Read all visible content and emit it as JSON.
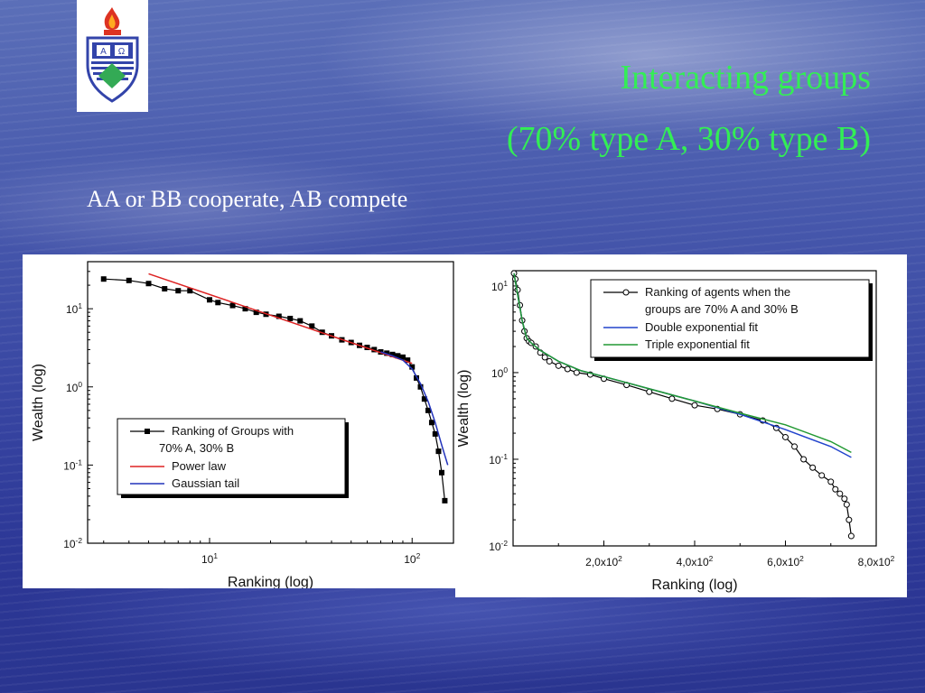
{
  "slide": {
    "title_line1": "Interacting groups",
    "title_line2": "(70% type A, 30% type B)",
    "subtitle": "AA or BB cooperate, AB compete",
    "title_color": "#33ee55"
  },
  "chart_data": [
    {
      "type": "scatter",
      "xlabel": "Ranking (log)",
      "ylabel": "Wealth (log)",
      "xscale": "log",
      "yscale": "log",
      "xlim": [
        2.5,
        160
      ],
      "ylim": [
        0.01,
        40
      ],
      "x_ticks": [
        {
          "base": "10",
          "exp": "1"
        },
        {
          "base": "10",
          "exp": "2"
        }
      ],
      "y_ticks": [
        {
          "base": "10",
          "exp": "-2"
        },
        {
          "base": "10",
          "exp": "-1"
        },
        {
          "base": "10",
          "exp": "0"
        },
        {
          "base": "10",
          "exp": "1"
        }
      ],
      "legend_position": "lower-center",
      "legend": [
        "Ranking of Groups with",
        "70% A, 30% B",
        "Power law",
        "Gaussian tail"
      ],
      "series": [
        {
          "name": "Ranking of Groups with 70% A, 30% B",
          "style": "black-square-line",
          "color": "#000000",
          "x": [
            3,
            4,
            5,
            6,
            7,
            8,
            10,
            11,
            13,
            15,
            17,
            19,
            22,
            25,
            28,
            32,
            36,
            40,
            45,
            50,
            55,
            60,
            65,
            70,
            75,
            80,
            85,
            90,
            95,
            100,
            105,
            110,
            115,
            120,
            125,
            130,
            135,
            140,
            145
          ],
          "y": [
            24,
            23,
            21,
            18,
            17,
            17,
            13,
            12,
            11,
            10,
            9,
            8.5,
            8,
            7.5,
            7,
            6,
            5,
            4.5,
            4,
            3.7,
            3.4,
            3.2,
            3,
            2.8,
            2.7,
            2.6,
            2.5,
            2.4,
            2.2,
            1.8,
            1.3,
            1,
            0.7,
            0.5,
            0.35,
            0.25,
            0.15,
            0.08,
            0.035
          ]
        },
        {
          "name": "Power law",
          "style": "line",
          "color": "#dd2222",
          "x": [
            5,
            100
          ],
          "y": [
            28,
            2.0
          ]
        },
        {
          "name": "Gaussian tail",
          "style": "line",
          "color": "#2233bb",
          "x": [
            70,
            80,
            90,
            100,
            110,
            120,
            130,
            140,
            150
          ],
          "y": [
            2.8,
            2.5,
            2.2,
            1.7,
            1.1,
            0.65,
            0.35,
            0.18,
            0.1
          ]
        }
      ]
    },
    {
      "type": "scatter",
      "xlabel": "Ranking (log)",
      "ylabel": "Wealth (log)",
      "xscale": "linear",
      "yscale": "log",
      "xlim": [
        0,
        800
      ],
      "ylim": [
        0.01,
        15
      ],
      "x_ticks": [
        {
          "v": 200,
          "base": "2,0x10",
          "exp": "2"
        },
        {
          "v": 400,
          "base": "4,0x10",
          "exp": "2"
        },
        {
          "v": 600,
          "base": "6,0x10",
          "exp": "2"
        },
        {
          "v": 800,
          "base": "8,0x10",
          "exp": "2"
        }
      ],
      "y_ticks": [
        {
          "base": "10",
          "exp": "-2"
        },
        {
          "base": "10",
          "exp": "-1"
        },
        {
          "base": "10",
          "exp": "0"
        },
        {
          "base": "10",
          "exp": "1"
        }
      ],
      "legend_position": "top-center",
      "legend": [
        "Ranking of agents when the",
        "groups are 70% A and 30% B",
        "Double exponential fit",
        "Triple exponential fit"
      ],
      "series": [
        {
          "name": "Ranking of agents when the groups are 70% A and 30% B",
          "style": "black-circle-line",
          "color": "#000000",
          "x": [
            2,
            5,
            10,
            15,
            20,
            25,
            30,
            35,
            40,
            50,
            60,
            70,
            80,
            100,
            120,
            140,
            170,
            200,
            250,
            300,
            350,
            400,
            450,
            500,
            550,
            580,
            600,
            620,
            640,
            660,
            680,
            700,
            710,
            720,
            730,
            735,
            740,
            745
          ],
          "y": [
            14,
            12,
            9,
            6,
            4,
            3,
            2.5,
            2.3,
            2.2,
            2.0,
            1.7,
            1.5,
            1.35,
            1.2,
            1.1,
            1.0,
            0.95,
            0.85,
            0.72,
            0.6,
            0.5,
            0.42,
            0.38,
            0.33,
            0.28,
            0.23,
            0.18,
            0.14,
            0.1,
            0.08,
            0.065,
            0.055,
            0.045,
            0.04,
            0.035,
            0.03,
            0.02,
            0.013
          ]
        },
        {
          "name": "Double exponential fit",
          "style": "line",
          "color": "#2244cc",
          "x": [
            2,
            10,
            20,
            30,
            40,
            60,
            100,
            150,
            200,
            300,
            400,
            500,
            600,
            700,
            745
          ],
          "y": [
            14,
            8,
            4,
            2.5,
            2.2,
            1.8,
            1.35,
            1.05,
            0.9,
            0.65,
            0.47,
            0.33,
            0.22,
            0.14,
            0.105
          ]
        },
        {
          "name": "Triple exponential fit",
          "style": "line",
          "color": "#229933",
          "x": [
            2,
            10,
            20,
            30,
            40,
            60,
            100,
            150,
            200,
            300,
            400,
            500,
            600,
            700,
            745
          ],
          "y": [
            14,
            8,
            4,
            2.5,
            2.2,
            1.8,
            1.35,
            1.05,
            0.9,
            0.65,
            0.47,
            0.34,
            0.25,
            0.16,
            0.12
          ]
        }
      ]
    }
  ]
}
